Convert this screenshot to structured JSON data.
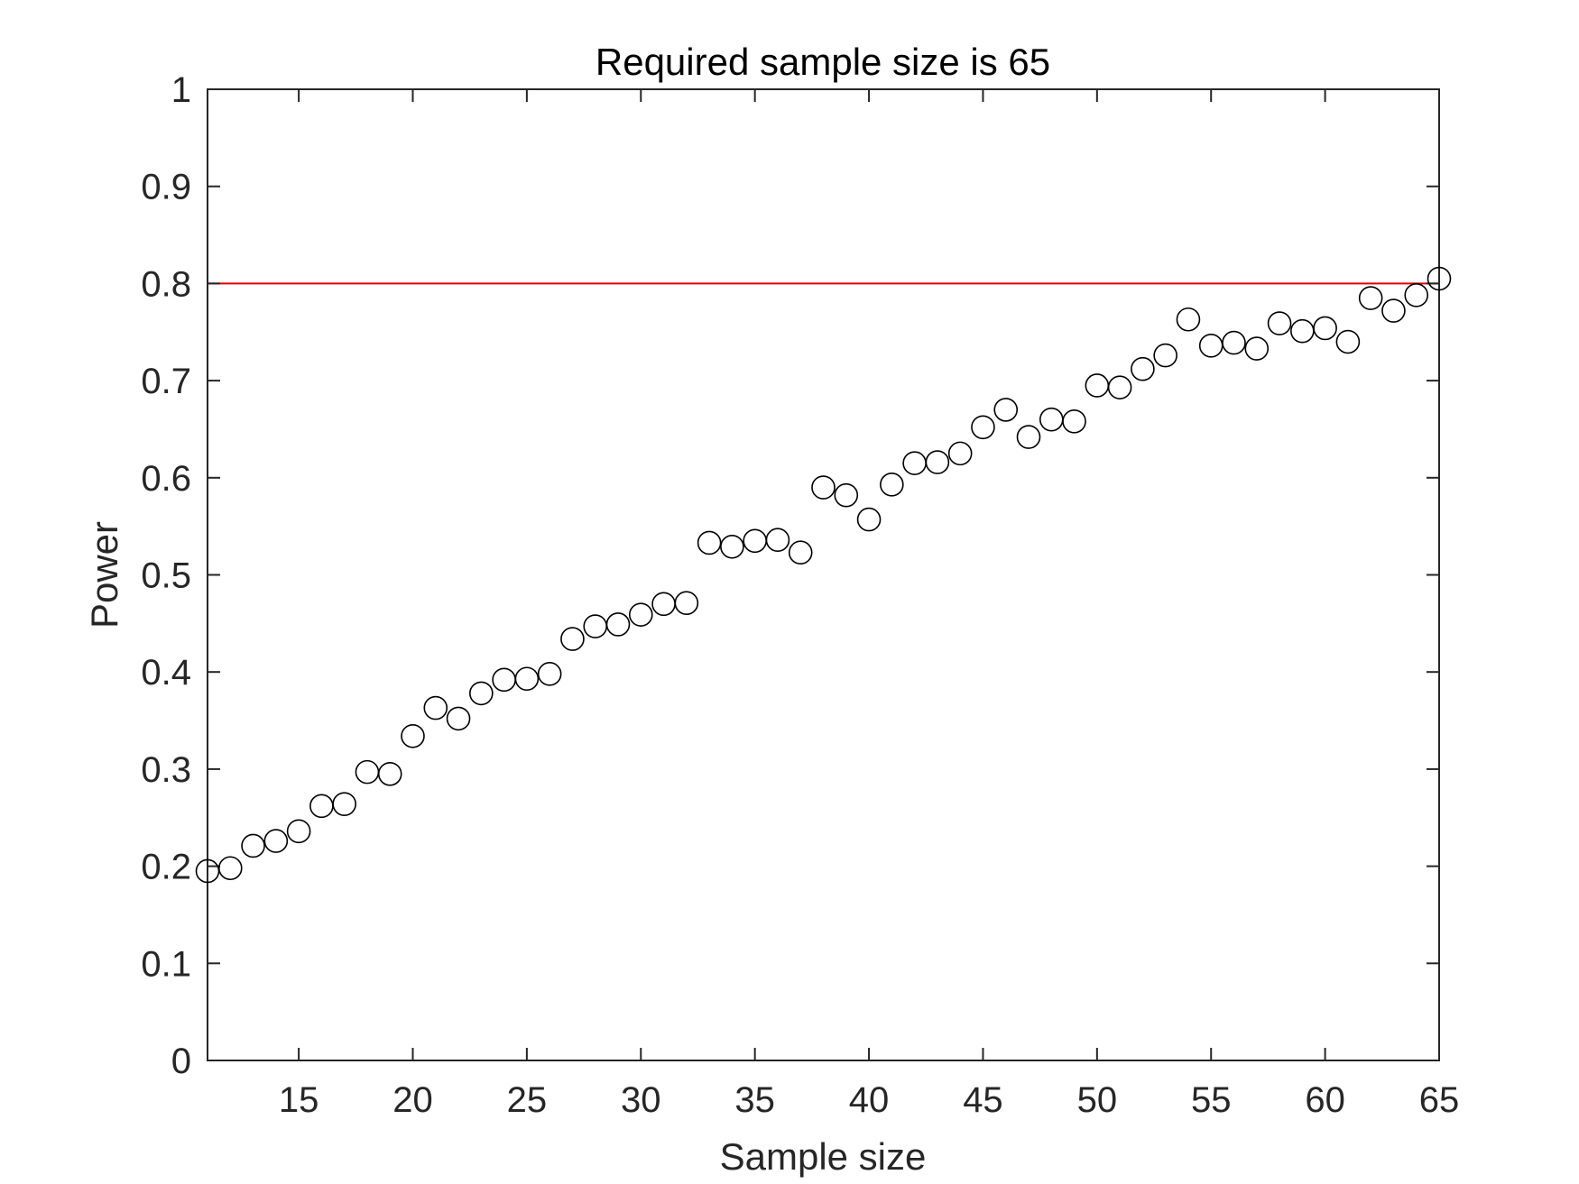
{
  "chart_data": {
    "type": "scatter",
    "title": "Required sample size is 65",
    "xlabel": "Sample size",
    "ylabel": "Power",
    "xlim": [
      11,
      65
    ],
    "ylim": [
      0,
      1
    ],
    "xticks": [
      15,
      20,
      25,
      30,
      35,
      40,
      45,
      50,
      55,
      60,
      65
    ],
    "yticks": [
      0,
      0.1,
      0.2,
      0.3,
      0.4,
      0.5,
      0.6,
      0.7,
      0.8,
      0.9,
      1
    ],
    "ytick_labels": [
      "0",
      "0.1",
      "0.2",
      "0.3",
      "0.4",
      "0.5",
      "0.6",
      "0.7",
      "0.8",
      "0.9",
      "1"
    ],
    "grid": false,
    "marker": "open-circle",
    "marker_color": "#000000",
    "threshold": {
      "y": 0.8,
      "color": "#e00000"
    },
    "series": [
      {
        "x": [
          11,
          12,
          13,
          14,
          15,
          16,
          17,
          18,
          19,
          20,
          21,
          22,
          23,
          24,
          25,
          26,
          27,
          28,
          29,
          30,
          31,
          32,
          33,
          34,
          35,
          36,
          37,
          38,
          39,
          40,
          41,
          42,
          43,
          44,
          45,
          46,
          47,
          48,
          49,
          50,
          51,
          52,
          53,
          54,
          55,
          56,
          57,
          58,
          59,
          60,
          61,
          62,
          63,
          64,
          65
        ],
        "y": [
          0.195,
          0.198,
          0.221,
          0.226,
          0.236,
          0.262,
          0.264,
          0.297,
          0.295,
          0.334,
          0.363,
          0.352,
          0.378,
          0.392,
          0.393,
          0.398,
          0.434,
          0.447,
          0.449,
          0.459,
          0.47,
          0.471,
          0.533,
          0.529,
          0.535,
          0.536,
          0.523,
          0.59,
          0.582,
          0.557,
          0.593,
          0.615,
          0.616,
          0.625,
          0.652,
          0.67,
          0.642,
          0.66,
          0.658,
          0.695,
          0.693,
          0.712,
          0.726,
          0.763,
          0.736,
          0.739,
          0.733,
          0.759,
          0.751,
          0.754,
          0.74,
          0.785,
          0.772,
          0.788,
          0.805
        ]
      }
    ]
  }
}
